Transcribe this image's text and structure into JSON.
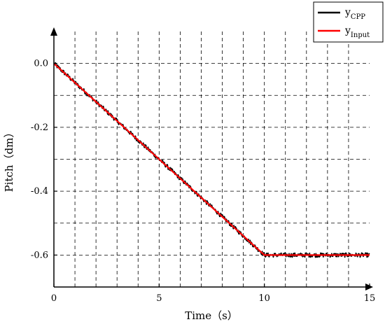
{
  "chart_data": {
    "type": "line",
    "title": "",
    "xlabel": "Time（s）",
    "ylabel": "Pitch（dm）",
    "xlim": [
      0,
      15
    ],
    "ylim": [
      -0.7,
      0.1
    ],
    "x_ticks": [
      0,
      5,
      10,
      15
    ],
    "x_tick_labels": [
      "0",
      "5",
      "10",
      "15"
    ],
    "y_ticks": [
      0.0,
      -0.2,
      -0.4,
      -0.6
    ],
    "y_tick_labels": [
      "0.0",
      "-0.2",
      "-0.4",
      "-0.6"
    ],
    "grid": true,
    "legend_position": "top-right",
    "series": [
      {
        "name_main": "y",
        "name_sub": "CPP",
        "color": "#000000",
        "x": [
          0,
          10,
          15
        ],
        "values": [
          0.0,
          -0.6,
          -0.6
        ],
        "noisy": true
      },
      {
        "name_main": "y",
        "name_sub": "Input",
        "color": "#ff0000",
        "x": [
          0,
          10,
          15
        ],
        "values": [
          0.0,
          -0.6,
          -0.6
        ],
        "noisy": false
      }
    ]
  }
}
